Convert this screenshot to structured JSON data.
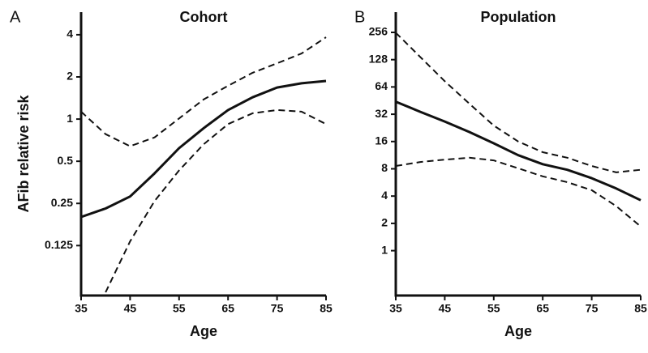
{
  "chart_data": [
    {
      "type": "line",
      "panel_label": "A",
      "title": "Cohort",
      "xlabel": "Age",
      "ylabel": "AFib relative risk",
      "yscale": "log",
      "x": [
        35,
        40,
        45,
        50,
        55,
        60,
        65,
        70,
        75,
        80,
        85
      ],
      "xlim": [
        35,
        85
      ],
      "xticks": [
        35,
        45,
        55,
        65,
        75,
        85
      ],
      "ylim": [
        0.055,
        5.8
      ],
      "yticks": [
        0.125,
        0.25,
        0.5,
        1,
        2,
        4
      ],
      "series": [
        {
          "style": "solid",
          "color": "#111111",
          "values": [
            0.2,
            0.23,
            0.28,
            0.41,
            0.62,
            0.86,
            1.16,
            1.43,
            1.68,
            1.8,
            1.87
          ]
        },
        {
          "style": "dashed",
          "color": "#111111",
          "values": [
            1.13,
            0.78,
            0.64,
            0.74,
            1.01,
            1.38,
            1.73,
            2.14,
            2.5,
            2.94,
            3.84
          ]
        },
        {
          "style": "dashed",
          "color": "#111111",
          "values": [
            null,
            0.058,
            0.134,
            0.26,
            0.43,
            0.66,
            0.92,
            1.1,
            1.16,
            1.13,
            0.92
          ]
        }
      ]
    },
    {
      "type": "line",
      "panel_label": "B",
      "title": "Population",
      "xlabel": "Age",
      "yscale": "log",
      "x": [
        35,
        40,
        45,
        50,
        55,
        60,
        65,
        70,
        75,
        80,
        85
      ],
      "xlim": [
        35,
        85
      ],
      "xticks": [
        35,
        45,
        55,
        65,
        75,
        85
      ],
      "ylim": [
        0.32,
        428
      ],
      "yticks": [
        1,
        2,
        4,
        8,
        16,
        32,
        64,
        128,
        256
      ],
      "series": [
        {
          "style": "solid",
          "color": "#111111",
          "values": [
            44,
            34,
            26.6,
            20.4,
            15.3,
            11.3,
            9.0,
            7.8,
            6.3,
            4.85,
            3.6
          ]
        },
        {
          "style": "dashed",
          "color": "#111111",
          "values": [
            254,
            137,
            74,
            42,
            24,
            16,
            12.2,
            10.6,
            8.6,
            7.3,
            7.8
          ]
        },
        {
          "style": "dashed",
          "color": "#111111",
          "values": [
            8.6,
            9.5,
            10.1,
            10.6,
            9.9,
            8.1,
            6.6,
            5.7,
            4.65,
            3.1,
            1.85
          ]
        }
      ]
    }
  ]
}
